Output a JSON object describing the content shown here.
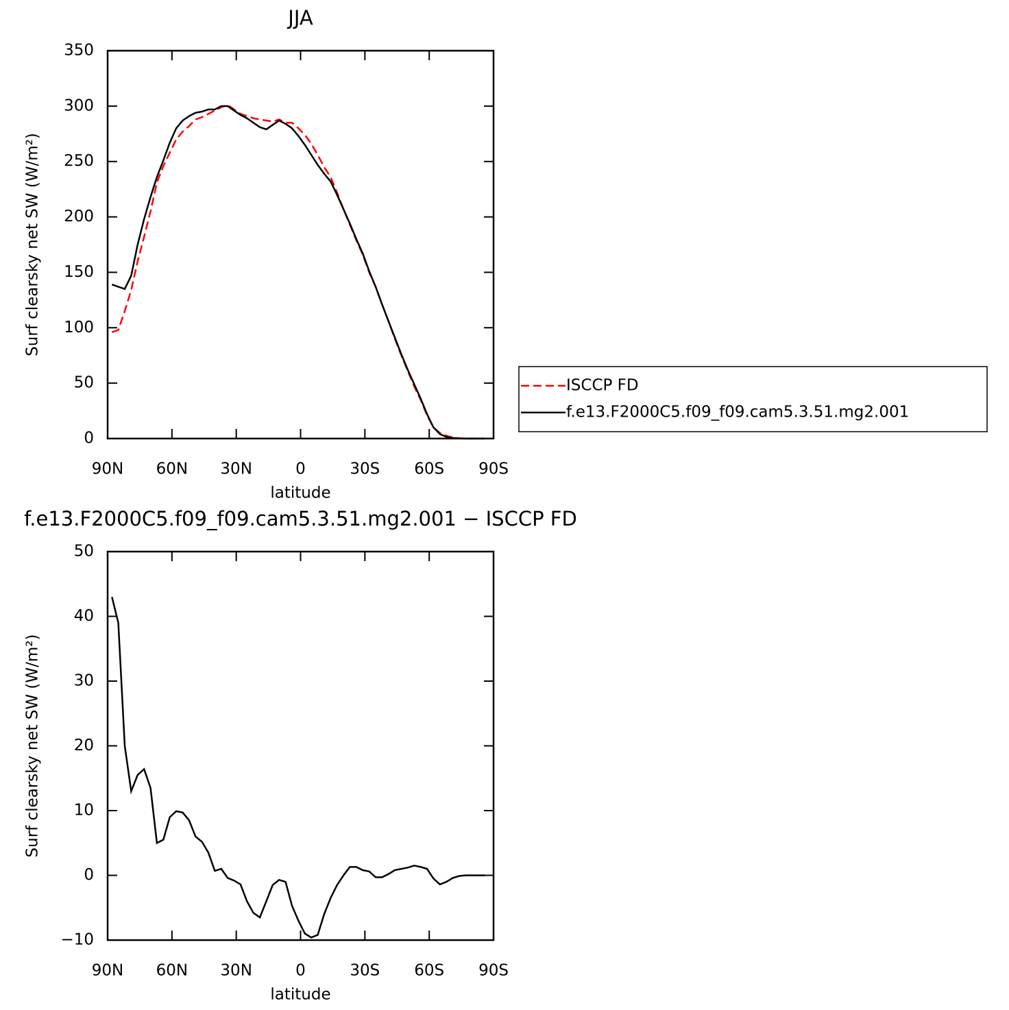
{
  "chart_data": [
    {
      "type": "line",
      "title": "JJA",
      "xlabel": "latitude",
      "ylabel": "Surf clearsky net SW (W/m²)",
      "x": [
        88,
        85,
        82,
        79,
        76,
        73,
        70,
        67,
        64,
        61,
        58,
        55,
        52,
        49,
        46,
        43,
        40,
        37,
        34,
        31,
        28,
        25,
        22,
        19,
        16,
        13,
        10,
        7,
        4,
        1,
        -2,
        -5,
        -8,
        -11,
        -14,
        -17,
        -20,
        -23,
        -26,
        -29,
        -32,
        -35,
        -38,
        -41,
        -44,
        -47,
        -50,
        -53,
        -56,
        -59,
        -62,
        -65,
        -68,
        -71,
        -74,
        -77,
        -80,
        -83,
        -86
      ],
      "series": [
        {
          "name": "ISCCP FD",
          "color": "#ff0000",
          "dashed": true,
          "values": [
            96,
            98,
            115,
            134,
            160,
            182,
            205,
            231,
            246,
            258,
            270,
            277,
            282,
            288,
            290,
            293,
            296,
            299,
            301,
            297,
            293,
            291,
            289,
            288,
            287,
            286,
            288,
            285,
            285,
            280,
            274,
            266,
            256,
            245,
            236,
            222,
            207,
            193,
            179,
            166,
            150,
            137,
            121,
            106,
            90,
            75,
            61,
            47,
            35,
            21,
            10,
            5,
            2.5,
            1,
            0.3,
            0,
            0,
            0,
            0
          ]
        },
        {
          "name": "f.e13.F2000C5.f09_f09.cam5.3.51.mg2.001",
          "color": "#000000",
          "dashed": false,
          "values": [
            139,
            137,
            135,
            147,
            175,
            198,
            218,
            236,
            251,
            267,
            280,
            287,
            291,
            294,
            295,
            297,
            297,
            300,
            300,
            296,
            292,
            289,
            285,
            281,
            279,
            283,
            287,
            284,
            280,
            273,
            265,
            256,
            247,
            239,
            232,
            220,
            207,
            194,
            180,
            167,
            151,
            137,
            121,
            106,
            91,
            76,
            62,
            49,
            36,
            22,
            10,
            4,
            1.5,
            0.5,
            0.2,
            0,
            0,
            0,
            0
          ]
        }
      ],
      "xlim": [
        90,
        -90
      ],
      "xticks": [
        {
          "value": 90,
          "label": "90N"
        },
        {
          "value": 60,
          "label": "60N"
        },
        {
          "value": 30,
          "label": "30N"
        },
        0,
        {
          "value": -30,
          "label": "30S"
        },
        {
          "value": -60,
          "label": "60S"
        },
        {
          "value": -90,
          "label": "90S"
        }
      ],
      "ylim": [
        0,
        350
      ],
      "yticks": [
        0,
        50,
        100,
        150,
        200,
        250,
        300,
        350
      ],
      "legend": "right"
    },
    {
      "type": "line",
      "title": "f.e13.F2000C5.f09_f09.cam5.3.51.mg2.001 − ISCCP FD",
      "xlabel": "latitude",
      "ylabel": "Surf clearsky net SW (W/m²)",
      "x": [
        88,
        85,
        82,
        79,
        76,
        73,
        70,
        67,
        64,
        61,
        58,
        55,
        52,
        49,
        46,
        43,
        40,
        37,
        34,
        31,
        28,
        25,
        22,
        19,
        16,
        13,
        10,
        7,
        4,
        1,
        -2,
        -5,
        -8,
        -11,
        -14,
        -17,
        -20,
        -23,
        -26,
        -29,
        -32,
        -35,
        -38,
        -41,
        -44,
        -47,
        -50,
        -53,
        -56,
        -59,
        -62,
        -65,
        -68,
        -71,
        -74,
        -77,
        -80,
        -83,
        -86
      ],
      "values": [
        43,
        39,
        20,
        13,
        15.5,
        16.4,
        13.5,
        5,
        5.5,
        9,
        9.9,
        9.7,
        8.5,
        6,
        5.2,
        3.5,
        0.7,
        1,
        -0.4,
        -0.8,
        -1.4,
        -4,
        -5.8,
        -6.5,
        -4,
        -1.5,
        -0.7,
        -1,
        -4.7,
        -7,
        -9,
        -9.6,
        -9.2,
        -6,
        -3.5,
        -1.5,
        0,
        1.3,
        1.3,
        0.8,
        0.6,
        -0.3,
        -0.3,
        0.2,
        0.8,
        1,
        1.2,
        1.5,
        1.3,
        1,
        -0.5,
        -1.4,
        -1,
        -0.4,
        -0.1,
        0,
        0,
        0,
        0
      ],
      "color": "#000000",
      "xlim": [
        90,
        -90
      ],
      "xticks": [
        {
          "value": 90,
          "label": "90N"
        },
        {
          "value": 60,
          "label": "60N"
        },
        {
          "value": 30,
          "label": "30N"
        },
        0,
        {
          "value": -30,
          "label": "30S"
        },
        {
          "value": -60,
          "label": "60S"
        },
        {
          "value": -90,
          "label": "90S"
        }
      ],
      "ylim": [
        -10,
        50
      ],
      "yticks": [
        {
          "value": -10,
          "label": "−10"
        },
        0,
        10,
        20,
        30,
        40,
        50
      ]
    }
  ]
}
